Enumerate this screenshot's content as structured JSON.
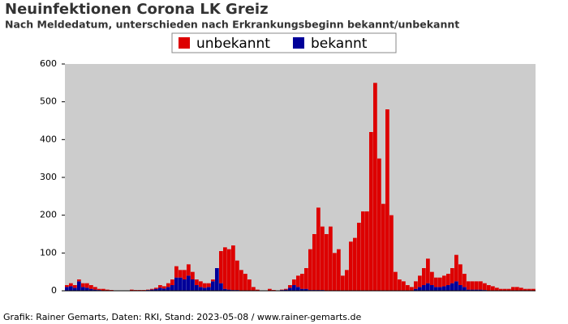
{
  "chart_data": {
    "type": "stacked_bar",
    "title": "Neuinfektionen Corona LK Greiz",
    "subtitle": "Nach Meldedatum, unterschieden nach Erkrankungsbeginn bekannt/unbekannt",
    "source": "Grafik: Rainer Gemarts, Daten: RKI, Stand: 2023-05-08 / www.rainer-gemarts.de",
    "legend": "top",
    "categories": [
      null,
      null,
      null,
      null,
      null,
      null,
      null,
      null,
      null,
      null,
      null,
      null,
      null,
      null,
      null,
      null,
      null,
      null,
      null,
      null,
      null,
      null,
      null,
      null,
      null,
      null,
      null,
      null,
      null,
      null,
      null,
      null,
      null,
      null,
      null,
      null,
      null,
      null,
      null,
      null,
      null,
      null,
      null,
      null,
      null,
      null,
      null,
      null,
      null,
      null,
      null,
      null,
      null,
      null,
      null,
      null,
      null,
      null,
      null,
      null,
      null,
      null,
      null,
      null,
      null,
      null,
      null,
      null,
      null,
      null,
      null,
      null,
      null,
      null,
      null,
      null,
      null,
      null,
      null,
      null,
      null,
      null,
      null,
      null,
      null,
      null,
      null,
      null,
      null,
      null,
      null,
      null,
      null,
      null,
      null,
      null,
      null,
      null,
      null,
      null,
      null,
      null,
      null,
      null,
      null,
      null,
      null,
      null,
      null,
      null,
      null,
      null,
      null,
      null,
      null,
      null
    ],
    "series": [
      {
        "name": "unbekannt",
        "color": "#dd0000",
        "values": [
          5,
          8,
          7,
          5,
          10,
          12,
          10,
          7,
          3,
          5,
          3,
          2,
          0,
          0,
          0,
          0,
          3,
          2,
          2,
          2,
          1,
          2,
          3,
          7,
          6,
          10,
          15,
          30,
          20,
          25,
          30,
          20,
          15,
          15,
          12,
          10,
          5,
          0,
          85,
          110,
          107,
          118,
          78,
          54,
          44,
          30,
          10,
          3,
          1,
          0,
          5,
          2,
          1,
          1,
          2,
          7,
          15,
          30,
          40,
          55,
          108,
          148,
          218,
          168,
          150,
          170,
          100,
          110,
          40,
          55,
          130,
          140,
          180,
          210,
          210,
          420,
          550,
          350,
          230,
          480,
          200,
          50,
          30,
          25,
          15,
          10,
          20,
          30,
          45,
          65,
          35,
          25,
          25,
          28,
          30,
          40,
          70,
          55,
          35,
          22,
          22,
          22,
          22,
          18,
          15,
          12,
          8,
          5,
          5,
          5,
          10,
          10,
          8,
          5,
          5,
          5
        ]
      },
      {
        "name": "bekannt",
        "color": "#000099",
        "values": [
          10,
          12,
          8,
          25,
          10,
          8,
          5,
          3,
          2,
          0,
          0,
          0,
          0,
          0,
          0,
          0,
          0,
          0,
          0,
          0,
          2,
          3,
          5,
          8,
          6,
          10,
          15,
          35,
          35,
          30,
          40,
          30,
          15,
          10,
          8,
          10,
          25,
          60,
          20,
          5,
          3,
          2,
          2,
          1,
          1,
          0,
          0,
          0,
          0,
          0,
          0,
          0,
          0,
          2,
          3,
          8,
          15,
          10,
          5,
          5,
          2,
          2,
          2,
          2,
          0,
          0,
          0,
          0,
          0,
          0,
          0,
          0,
          0,
          0,
          0,
          0,
          0,
          0,
          0,
          0,
          0,
          0,
          0,
          0,
          0,
          0,
          5,
          10,
          15,
          20,
          15,
          10,
          10,
          12,
          15,
          20,
          25,
          15,
          10,
          3,
          3,
          3,
          3,
          2,
          0,
          0,
          0,
          0,
          0,
          0,
          0,
          0,
          0,
          0,
          0,
          0
        ]
      }
    ],
    "ylim": [
      0,
      600
    ],
    "yticks": [
      0,
      100,
      200,
      300,
      400,
      500,
      600
    ],
    "plot_background": "#cccccc"
  }
}
